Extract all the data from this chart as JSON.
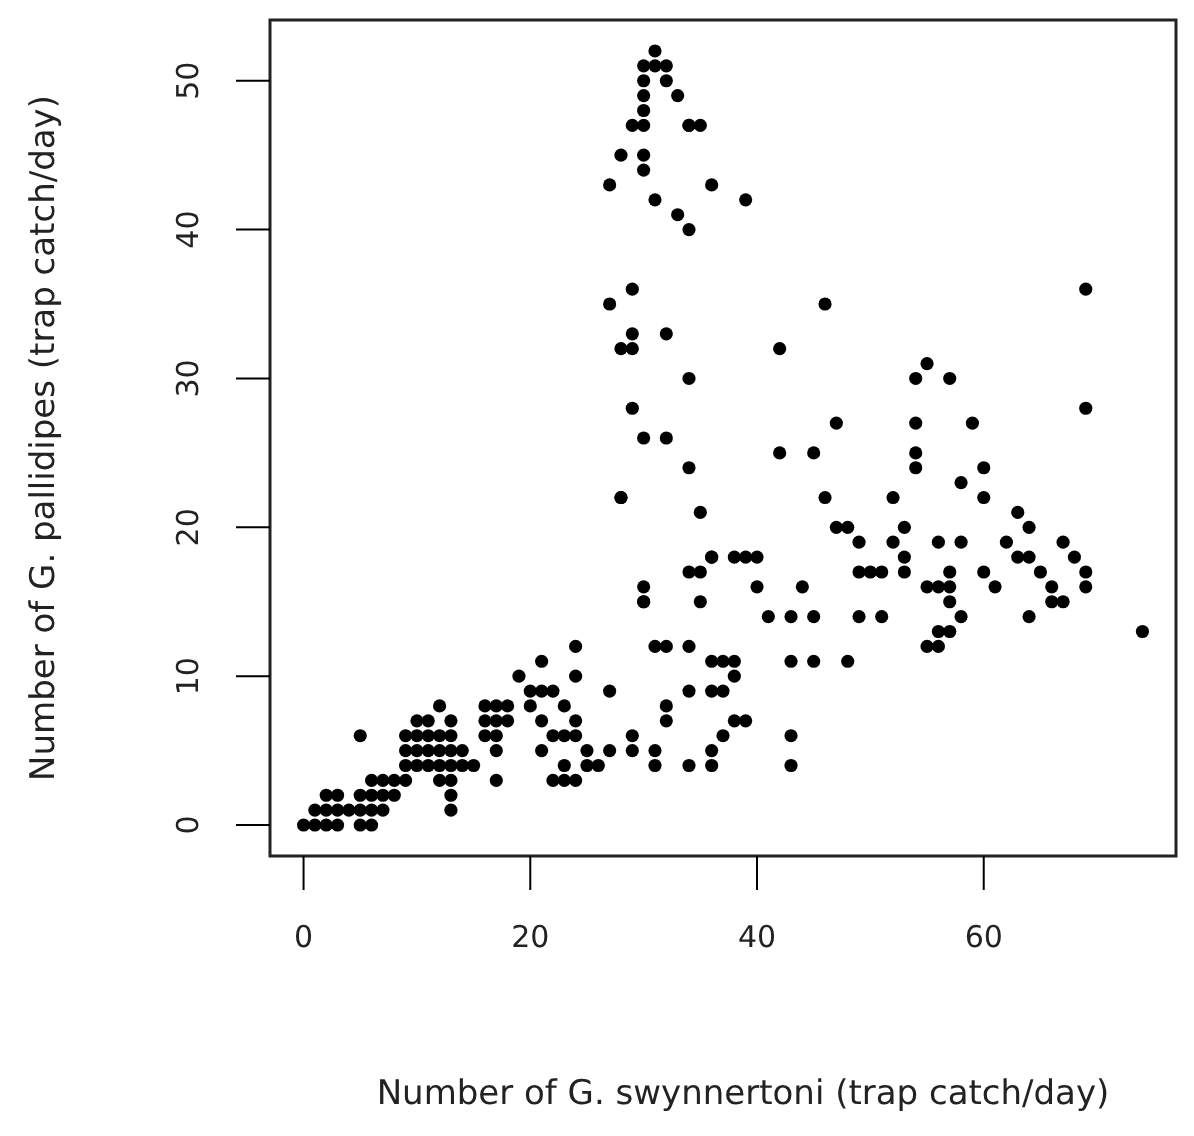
{
  "chart_data": {
    "type": "scatter",
    "xlabel": "Number of G. swynnertoni (trap catch/day)",
    "ylabel": "Number of G. pallidipes (trap catch/day)",
    "xlim": [
      -2.96,
      76.96
    ],
    "ylim": [
      -2.08,
      54.08
    ],
    "xticks": [
      0,
      20,
      40,
      60
    ],
    "yticks": [
      0,
      10,
      20,
      30,
      40,
      50
    ],
    "grid": false,
    "marker": "circle",
    "series": [
      {
        "color": "#000000",
        "x": [
          0,
          1,
          2,
          3,
          5,
          6,
          1,
          2,
          3,
          4,
          5,
          6,
          7,
          2,
          3,
          5,
          6,
          7,
          8,
          6,
          7,
          8,
          9,
          9,
          10,
          11,
          12,
          13,
          14,
          9,
          10,
          11,
          12,
          13,
          14,
          17,
          9,
          10,
          11,
          12,
          13,
          16,
          17,
          5,
          10,
          11,
          13,
          16,
          17,
          18,
          12,
          16,
          17,
          18,
          13,
          13,
          13,
          12,
          15,
          17,
          19,
          21,
          20,
          21,
          22,
          23,
          20,
          21,
          22,
          23,
          24,
          21,
          24,
          24,
          24,
          22,
          23,
          24,
          23,
          25,
          26,
          25,
          27,
          27,
          29,
          29,
          31,
          31,
          32,
          32,
          34,
          34,
          34,
          36,
          36,
          37,
          38,
          39,
          36,
          37,
          38,
          36,
          37,
          38,
          43,
          43,
          30,
          30,
          28,
          31,
          31,
          30,
          32,
          30,
          32,
          30,
          33,
          30,
          34,
          29,
          30,
          34,
          35,
          28,
          30,
          30,
          27,
          31,
          33,
          34,
          36,
          39,
          29,
          27,
          46,
          29,
          32,
          28,
          29,
          42,
          34,
          54,
          29,
          69,
          69,
          55,
          57,
          47,
          54,
          59,
          30,
          32,
          42,
          45,
          54,
          34,
          60,
          58,
          28,
          46,
          52,
          60,
          35,
          63,
          47,
          48,
          53,
          64,
          49,
          52,
          56,
          58,
          62,
          67,
          36,
          38,
          39,
          40,
          53,
          63,
          64,
          68,
          34,
          49,
          50,
          51,
          53,
          57,
          60,
          65,
          69,
          40,
          44,
          55,
          56,
          57,
          61,
          66,
          69,
          35,
          57,
          67,
          66,
          41,
          43,
          45,
          49,
          51,
          58,
          64,
          56,
          57,
          74,
          31,
          32,
          55,
          43,
          45,
          48,
          30,
          35,
          36,
          54,
          56
        ],
        "values": [
          0,
          0,
          0,
          0,
          0,
          0,
          1,
          1,
          1,
          1,
          1,
          1,
          1,
          2,
          2,
          2,
          2,
          2,
          2,
          3,
          3,
          3,
          3,
          4,
          4,
          4,
          4,
          4,
          4,
          5,
          5,
          5,
          5,
          5,
          5,
          5,
          6,
          6,
          6,
          6,
          6,
          6,
          6,
          6,
          7,
          7,
          7,
          7,
          7,
          7,
          8,
          8,
          8,
          8,
          3,
          2,
          1,
          3,
          4,
          3,
          10,
          11,
          8,
          9,
          9,
          8,
          9,
          7,
          6,
          6,
          6,
          5,
          7,
          10,
          12,
          3,
          3,
          3,
          4,
          5,
          4,
          4,
          5,
          9,
          6,
          5,
          5,
          4,
          8,
          7,
          4,
          9,
          12,
          5,
          4,
          6,
          7,
          7,
          11,
          11,
          11,
          9,
          9,
          10,
          6,
          4,
          16,
          15,
          22,
          52,
          51,
          51,
          51,
          50,
          50,
          49,
          49,
          48,
          47,
          47,
          47,
          47,
          47,
          45,
          45,
          44,
          43,
          42,
          41,
          40,
          43,
          42,
          36,
          35,
          35,
          33,
          33,
          32,
          32,
          32,
          30,
          30,
          28,
          28,
          36,
          31,
          30,
          27,
          27,
          27,
          26,
          26,
          25,
          25,
          25,
          24,
          24,
          23,
          22,
          22,
          22,
          22,
          21,
          21,
          20,
          20,
          20,
          20,
          19,
          19,
          19,
          19,
          19,
          19,
          18,
          18,
          18,
          18,
          18,
          18,
          18,
          18,
          17,
          17,
          17,
          17,
          17,
          17,
          17,
          17,
          17,
          16,
          16,
          16,
          16,
          16,
          16,
          16,
          16,
          15,
          15,
          15,
          15,
          14,
          14,
          14,
          14,
          14,
          14,
          14,
          13,
          13,
          13,
          12,
          12,
          12,
          11,
          11,
          11,
          15,
          17,
          18,
          24,
          12
        ]
      }
    ]
  }
}
